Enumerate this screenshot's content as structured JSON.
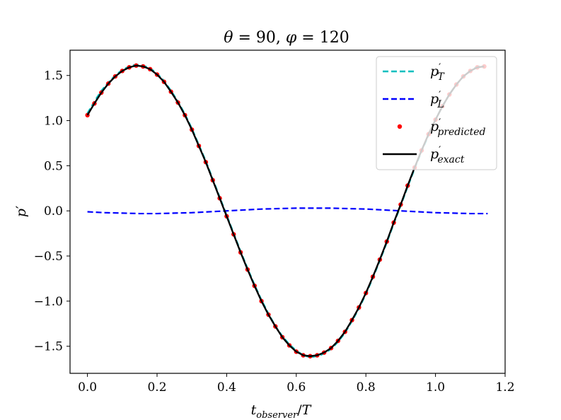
{
  "chart_data": {
    "type": "line",
    "title": "θ = 90, φ = 120",
    "xlabel": "t_observer / T",
    "ylabel": "p′",
    "xlim": [
      -0.05,
      1.2
    ],
    "ylim": [
      -1.8,
      1.78
    ],
    "xticks": [
      0.0,
      0.2,
      0.4,
      0.6,
      0.8,
      1.0,
      1.2
    ],
    "xtick_labels": [
      "0.0",
      "0.2",
      "0.4",
      "0.6",
      "0.8",
      "1.0",
      "1.2"
    ],
    "yticks": [
      1.5,
      1.0,
      0.5,
      0.0,
      -0.5,
      -1.0,
      -1.5
    ],
    "ytick_labels": [
      "1.5",
      "1.0",
      "0.5",
      "0.0",
      "−0.5",
      "−1.0",
      "−1.5"
    ],
    "grid": false,
    "legend_position": "top-right",
    "series": [
      {
        "name": "p′_T",
        "style": "dashed",
        "color": "#00bfbf",
        "x": [
          0.0,
          0.02,
          0.04,
          0.06,
          0.08,
          0.1,
          0.12,
          0.14,
          0.16,
          0.18,
          0.2,
          0.22,
          0.24,
          0.26,
          0.28,
          0.3,
          0.32,
          0.34,
          0.36,
          0.38,
          0.4,
          0.42,
          0.44,
          0.46,
          0.48,
          0.5,
          0.52,
          0.54,
          0.56,
          0.58,
          0.6,
          0.62,
          0.64,
          0.66,
          0.68,
          0.7,
          0.72,
          0.74,
          0.76,
          0.78,
          0.8,
          0.82,
          0.84,
          0.86,
          0.88,
          0.9,
          0.92,
          0.94,
          0.96,
          0.98,
          1.0,
          1.02,
          1.04,
          1.06,
          1.08,
          1.1,
          1.12,
          1.14
        ],
        "y": [
          1.08,
          1.21,
          1.33,
          1.42,
          1.5,
          1.56,
          1.6,
          1.62,
          1.61,
          1.58,
          1.52,
          1.44,
          1.33,
          1.21,
          1.07,
          0.91,
          0.73,
          0.55,
          0.35,
          0.15,
          -0.05,
          -0.25,
          -0.45,
          -0.64,
          -0.82,
          -0.99,
          -1.14,
          -1.28,
          -1.39,
          -1.48,
          -1.55,
          -1.6,
          -1.62,
          -1.61,
          -1.58,
          -1.53,
          -1.45,
          -1.35,
          -1.22,
          -1.08,
          -0.92,
          -0.74,
          -0.55,
          -0.35,
          -0.14,
          0.06,
          0.27,
          0.47,
          0.66,
          0.84,
          1.01,
          1.16,
          1.29,
          1.4,
          1.49,
          1.55,
          1.6,
          1.61
        ]
      },
      {
        "name": "p′_L",
        "style": "dashed",
        "color": "#0000ff",
        "x": [
          0.0,
          0.05,
          0.1,
          0.15,
          0.2,
          0.25,
          0.3,
          0.35,
          0.4,
          0.45,
          0.5,
          0.55,
          0.6,
          0.65,
          0.7,
          0.75,
          0.8,
          0.85,
          0.9,
          0.95,
          1.0,
          1.05,
          1.1,
          1.15
        ],
        "y": [
          -0.01,
          -0.02,
          -0.025,
          -0.03,
          -0.03,
          -0.025,
          -0.02,
          -0.01,
          0.0,
          0.01,
          0.02,
          0.025,
          0.03,
          0.03,
          0.03,
          0.025,
          0.02,
          0.01,
          0.0,
          -0.01,
          -0.02,
          -0.025,
          -0.03,
          -0.03
        ]
      },
      {
        "name": "p′_predicted",
        "style": "markers",
        "color": "#ff0000",
        "x": [
          0.0,
          0.02,
          0.04,
          0.06,
          0.08,
          0.1,
          0.12,
          0.14,
          0.16,
          0.18,
          0.2,
          0.22,
          0.24,
          0.26,
          0.28,
          0.3,
          0.32,
          0.34,
          0.36,
          0.38,
          0.4,
          0.42,
          0.44,
          0.46,
          0.48,
          0.5,
          0.52,
          0.54,
          0.56,
          0.58,
          0.6,
          0.62,
          0.64,
          0.66,
          0.68,
          0.7,
          0.72,
          0.74,
          0.76,
          0.78,
          0.8,
          0.82,
          0.84,
          0.86,
          0.88,
          0.9,
          0.92,
          0.94,
          0.96,
          0.98,
          1.0,
          1.02,
          1.04,
          1.06,
          1.08,
          1.1,
          1.12,
          1.14
        ],
        "y": [
          1.06,
          1.19,
          1.31,
          1.41,
          1.49,
          1.55,
          1.59,
          1.61,
          1.6,
          1.57,
          1.51,
          1.43,
          1.32,
          1.2,
          1.06,
          0.9,
          0.72,
          0.54,
          0.34,
          0.14,
          -0.06,
          -0.26,
          -0.46,
          -0.65,
          -0.83,
          -1.0,
          -1.15,
          -1.28,
          -1.4,
          -1.49,
          -1.56,
          -1.6,
          -1.61,
          -1.6,
          -1.57,
          -1.52,
          -1.44,
          -1.34,
          -1.21,
          -1.07,
          -0.91,
          -0.73,
          -0.54,
          -0.34,
          -0.13,
          0.07,
          0.28,
          0.48,
          0.67,
          0.85,
          1.01,
          1.16,
          1.29,
          1.4,
          1.49,
          1.55,
          1.59,
          1.6
        ]
      },
      {
        "name": "p′_exact",
        "style": "solid",
        "color": "#000000",
        "x": [
          0.0,
          0.02,
          0.04,
          0.06,
          0.08,
          0.1,
          0.12,
          0.14,
          0.16,
          0.18,
          0.2,
          0.22,
          0.24,
          0.26,
          0.28,
          0.3,
          0.32,
          0.34,
          0.36,
          0.38,
          0.4,
          0.42,
          0.44,
          0.46,
          0.48,
          0.5,
          0.52,
          0.54,
          0.56,
          0.58,
          0.6,
          0.62,
          0.64,
          0.66,
          0.68,
          0.7,
          0.72,
          0.74,
          0.76,
          0.78,
          0.8,
          0.82,
          0.84,
          0.86,
          0.88,
          0.9,
          0.92,
          0.94,
          0.96,
          0.98,
          1.0,
          1.02,
          1.04,
          1.06,
          1.08,
          1.1,
          1.12,
          1.14
        ],
        "y": [
          1.06,
          1.19,
          1.31,
          1.41,
          1.49,
          1.55,
          1.59,
          1.61,
          1.6,
          1.57,
          1.51,
          1.43,
          1.32,
          1.2,
          1.06,
          0.9,
          0.72,
          0.54,
          0.34,
          0.14,
          -0.06,
          -0.26,
          -0.46,
          -0.65,
          -0.83,
          -1.0,
          -1.15,
          -1.28,
          -1.4,
          -1.49,
          -1.56,
          -1.6,
          -1.61,
          -1.6,
          -1.57,
          -1.52,
          -1.44,
          -1.34,
          -1.21,
          -1.07,
          -0.91,
          -0.73,
          -0.54,
          -0.34,
          -0.13,
          0.07,
          0.28,
          0.48,
          0.67,
          0.85,
          1.01,
          1.16,
          1.29,
          1.4,
          1.49,
          1.55,
          1.59,
          1.6
        ]
      }
    ],
    "legend": {
      "entries": [
        {
          "main": "p",
          "prime": "′",
          "sub": "T"
        },
        {
          "main": "p",
          "prime": "′",
          "sub": "L"
        },
        {
          "main": "p",
          "prime": "′",
          "sub": "predicted"
        },
        {
          "main": "p",
          "prime": "′",
          "sub": "exact"
        }
      ]
    },
    "title_parts": {
      "theta": "θ",
      "eq1": " = 90, ",
      "phi": "φ",
      "eq2": " = 120"
    },
    "xlabel_parts": {
      "main": "t",
      "sub": "observer",
      "rest": "/T"
    },
    "ylabel_parts": {
      "main": "p",
      "prime": "′"
    }
  }
}
